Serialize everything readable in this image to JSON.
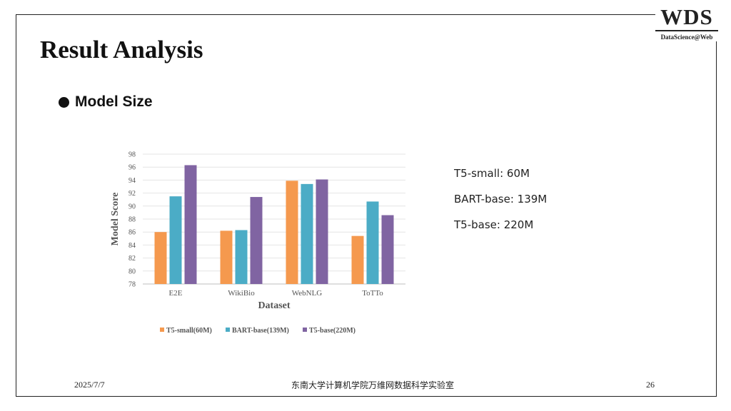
{
  "logo": {
    "main": "WDS",
    "sub": "DataScience@Web"
  },
  "title": "Result Analysis",
  "bullet": "Model Size",
  "notes": [
    "T5-small: 60M",
    "BART-base: 139M",
    "T5-base: 220M"
  ],
  "footer": {
    "date": "2025/7/7",
    "center": "东南大学计算机学院万维网数据科学实验室",
    "page": "26"
  },
  "chart_data": {
    "type": "bar",
    "title": "",
    "xlabel": "Dataset",
    "ylabel": "Model Score",
    "categories": [
      "E2E",
      "WikiBio",
      "WebNLG",
      "ToTTo"
    ],
    "ylim": [
      78,
      98
    ],
    "yticks": [
      "78",
      "80",
      "82",
      "84",
      "86",
      "88",
      "90",
      "92",
      "94",
      "96",
      "98"
    ],
    "grid": true,
    "legend": "bottom",
    "series": [
      {
        "name": "T5-small(60M)",
        "color": "#f5994e",
        "values": [
          86.0,
          86.2,
          93.9,
          85.4
        ]
      },
      {
        "name": "BART-base(139M)",
        "color": "#4bacc6",
        "values": [
          91.5,
          86.3,
          93.4,
          90.7
        ]
      },
      {
        "name": "T5-base(220M)",
        "color": "#8064a2",
        "values": [
          96.3,
          91.4,
          94.1,
          88.6
        ]
      }
    ]
  }
}
